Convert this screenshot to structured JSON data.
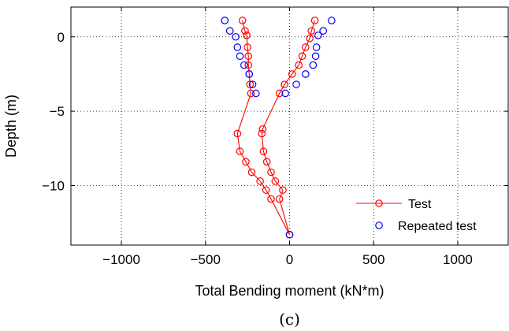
{
  "chart_data": {
    "type": "line",
    "title": "",
    "xlabel": "Total Bending moment (kN*m)",
    "ylabel": "Depth (m)",
    "caption": "(c)",
    "xlim": [
      -1300,
      1300
    ],
    "ylim": [
      -14,
      2
    ],
    "xticks": [
      -1000,
      -500,
      0,
      500,
      1000
    ],
    "xtick_labels": [
      "−1000",
      "−500",
      "0",
      "500",
      "1000"
    ],
    "yticks": [
      0,
      -5,
      -10
    ],
    "ytick_labels": [
      "0",
      "−5",
      "−10"
    ],
    "grid": true,
    "legend": {
      "position": "bottom-right"
    },
    "colors": {
      "test": "#ff0000",
      "repeated": "#0000ff"
    },
    "series": [
      {
        "name": "Test",
        "style": "line-circle",
        "points": [
          [
            -280,
            1.1
          ],
          [
            -265,
            0.4
          ],
          [
            -255,
            0.1
          ],
          [
            -250,
            -0.7
          ],
          [
            -245,
            -1.3
          ],
          [
            -245,
            -1.9
          ],
          [
            -240,
            -2.5
          ],
          [
            -235,
            -3.2
          ],
          [
            -230,
            -3.8
          ],
          [
            -310,
            -6.5
          ],
          [
            -295,
            -7.7
          ],
          [
            -260,
            -8.4
          ],
          [
            -225,
            -9.1
          ],
          [
            -175,
            -9.7
          ],
          [
            -140,
            -10.3
          ],
          [
            -110,
            -10.9
          ],
          [
            0,
            -13.3
          ],
          [
            0,
            -13.3
          ],
          [
            -60,
            -10.9
          ],
          [
            -40,
            -10.3
          ],
          [
            -85,
            -9.7
          ],
          [
            -110,
            -9.1
          ],
          [
            -135,
            -8.4
          ],
          [
            -155,
            -7.7
          ],
          [
            -165,
            -6.5
          ],
          [
            -160,
            -6.2
          ],
          [
            -60,
            -3.8
          ],
          [
            -30,
            -3.2
          ],
          [
            15,
            -2.5
          ],
          [
            55,
            -1.9
          ],
          [
            75,
            -1.3
          ],
          [
            95,
            -0.7
          ],
          [
            120,
            -0.1
          ],
          [
            130,
            0.4
          ],
          [
            150,
            1.1
          ]
        ]
      },
      {
        "name": "Repeated test",
        "style": "circle",
        "points": [
          [
            -385,
            1.1
          ],
          [
            -355,
            0.4
          ],
          [
            -320,
            0.0
          ],
          [
            -310,
            -0.7
          ],
          [
            -295,
            -1.3
          ],
          [
            -270,
            -1.9
          ],
          [
            -240,
            -2.5
          ],
          [
            -220,
            -3.2
          ],
          [
            -200,
            -3.8
          ],
          [
            250,
            1.1
          ],
          [
            200,
            0.4
          ],
          [
            170,
            0.1
          ],
          [
            160,
            -0.7
          ],
          [
            155,
            -1.3
          ],
          [
            140,
            -1.9
          ],
          [
            95,
            -2.5
          ],
          [
            40,
            -3.2
          ],
          [
            -25,
            -3.8
          ],
          [
            0,
            -13.3
          ]
        ]
      }
    ]
  }
}
